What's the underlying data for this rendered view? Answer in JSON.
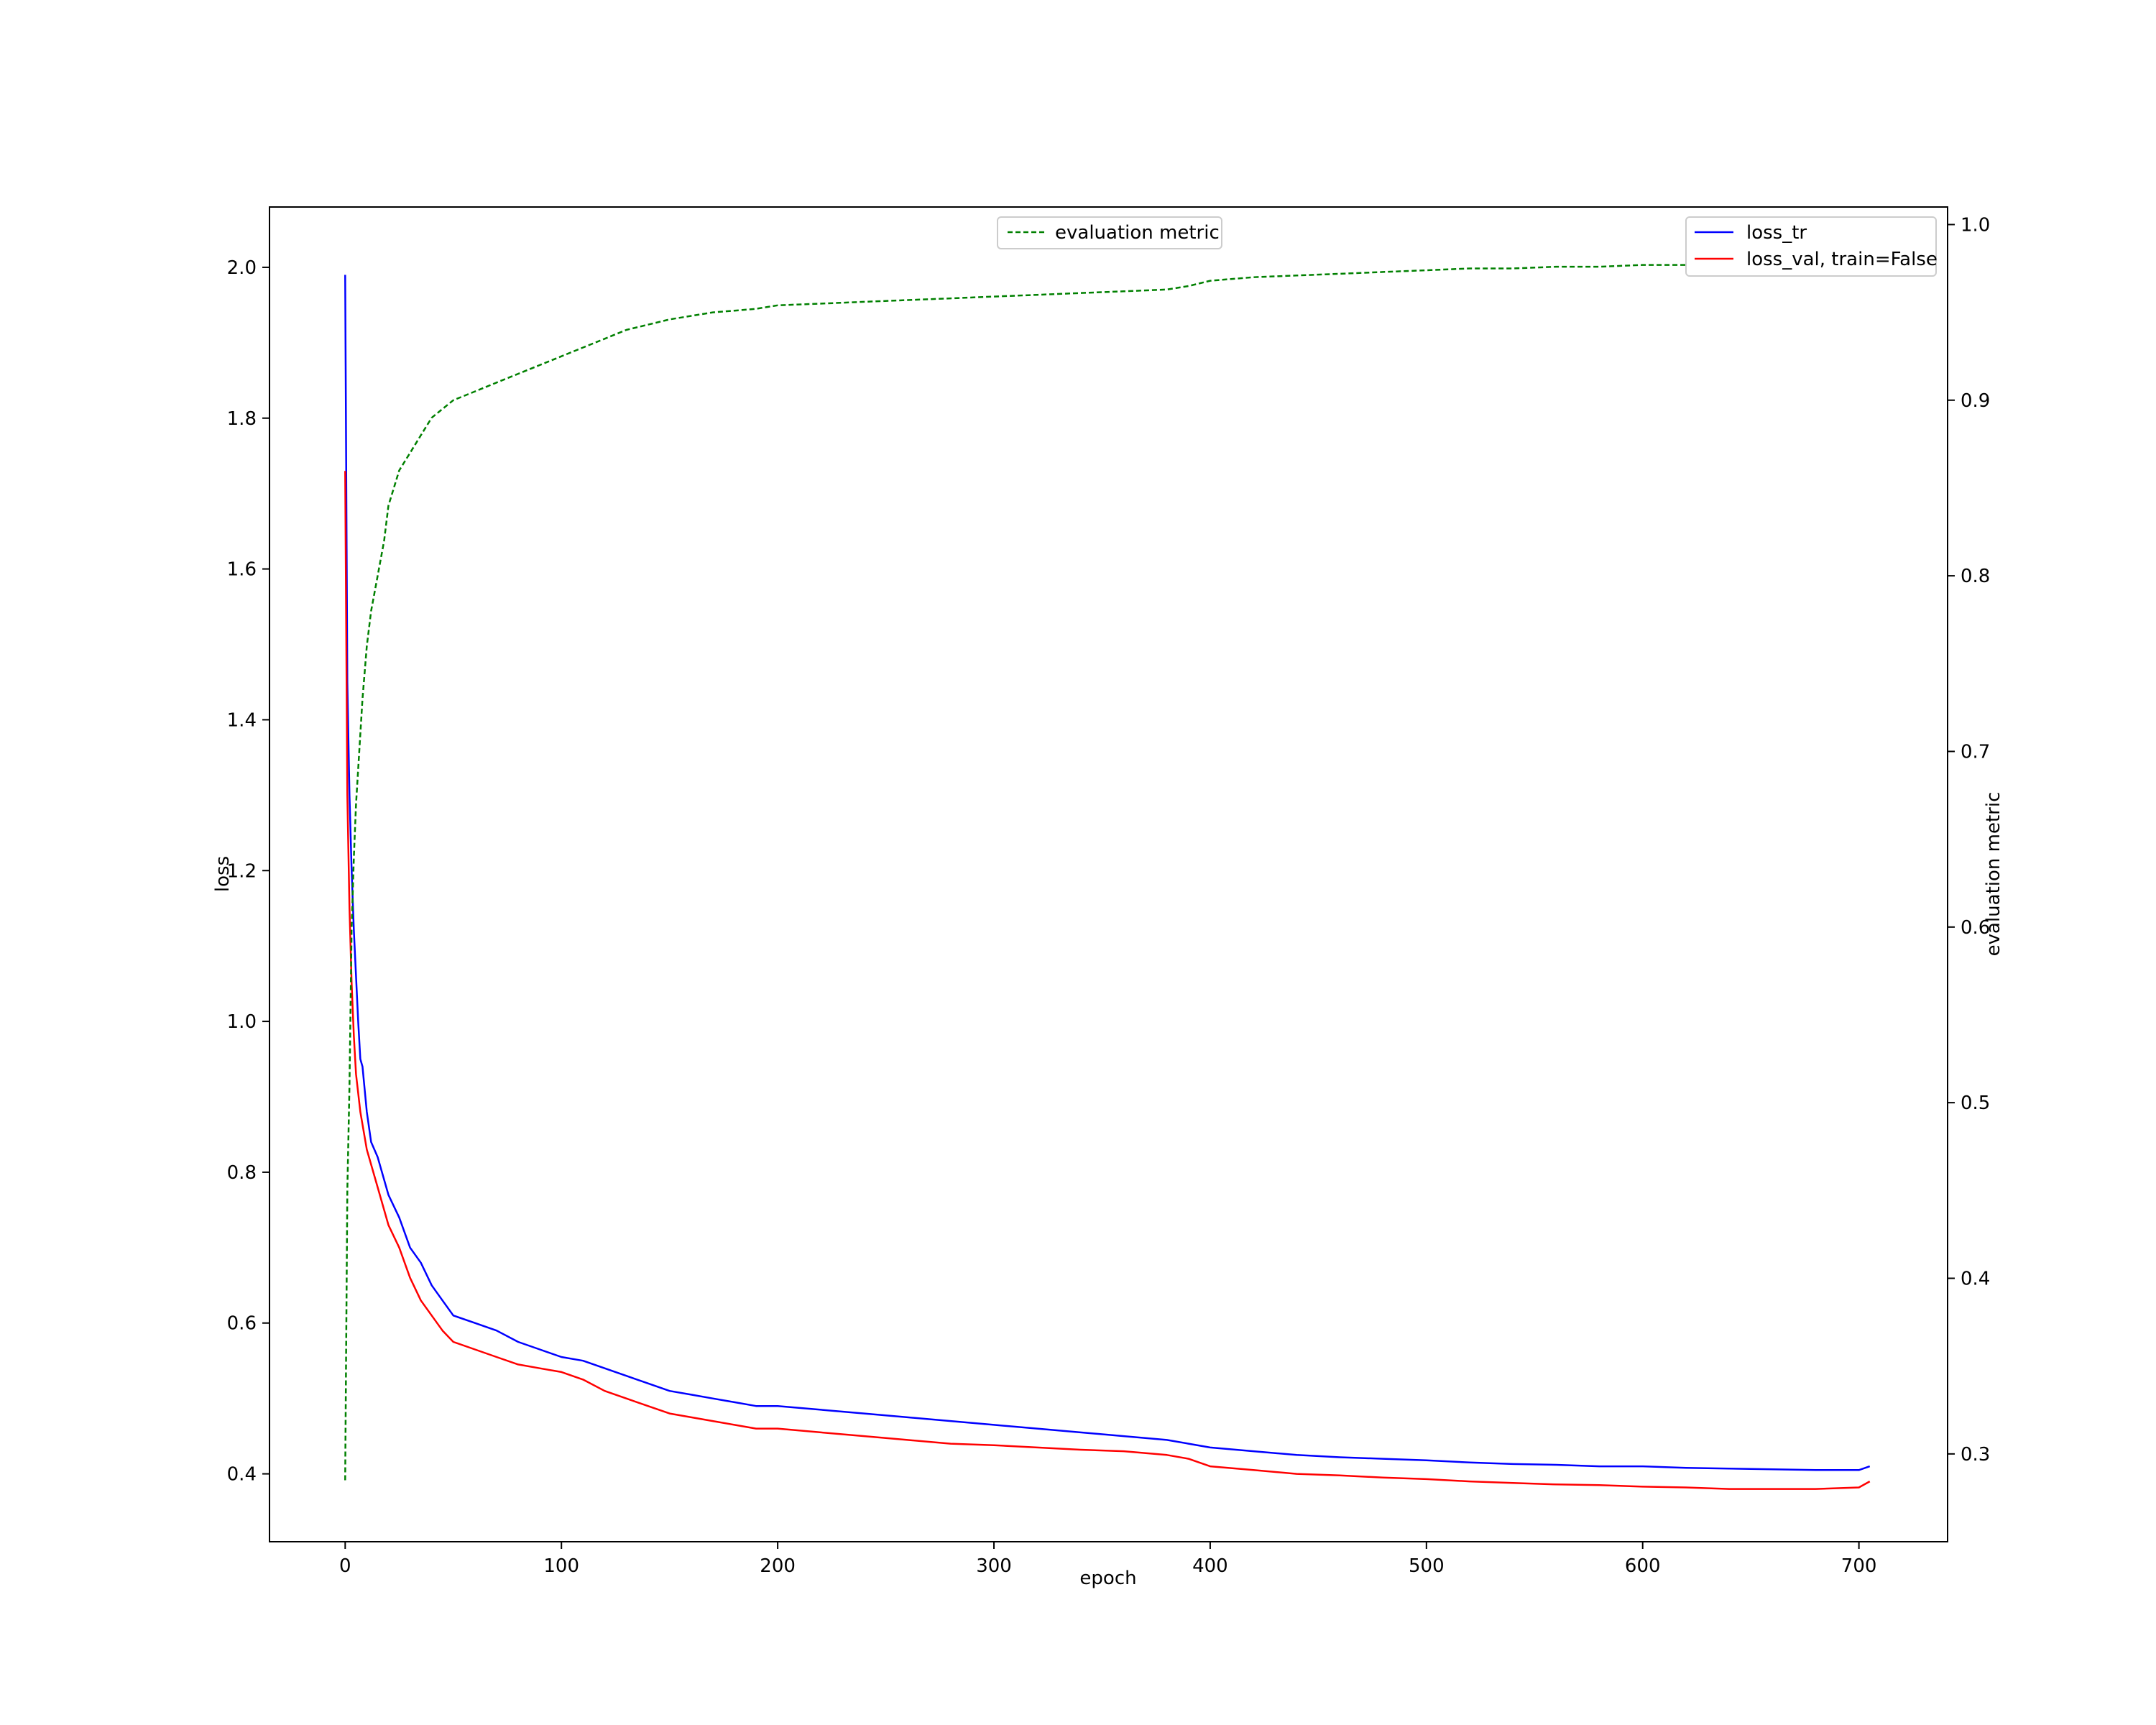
{
  "chart_data": {
    "type": "line",
    "xlabel": "epoch",
    "ylabel_left": "loss",
    "ylabel_right": "evaluation metric",
    "xlim": [
      -35,
      741
    ],
    "ylim_left": [
      0.31,
      2.08
    ],
    "ylim_right": [
      0.25,
      1.01
    ],
    "xticks": [
      "0",
      "100",
      "200",
      "300",
      "400",
      "500",
      "600",
      "700"
    ],
    "yticks_left": [
      "0.4",
      "0.6",
      "0.8",
      "1.0",
      "1.2",
      "1.4",
      "1.6",
      "1.8",
      "2.0"
    ],
    "yticks_right": [
      "0.3",
      "0.4",
      "0.5",
      "0.6",
      "0.7",
      "0.8",
      "0.9",
      "1.0"
    ],
    "grid": false,
    "legend_right": {
      "placement": "top-right",
      "entries": [
        "loss_tr",
        "loss_val, train=False"
      ]
    },
    "legend_left": {
      "placement": "top-center",
      "entries": [
        "evaluation metric"
      ]
    },
    "series": [
      {
        "name": "loss_tr",
        "axis": "left",
        "color": "#0000ff",
        "style": "solid",
        "points": [
          [
            0,
            1.99
          ],
          [
            1,
            1.45
          ],
          [
            2,
            1.3
          ],
          [
            3,
            1.2
          ],
          [
            4,
            1.12
          ],
          [
            5,
            1.06
          ],
          [
            6,
            1.0
          ],
          [
            7,
            0.95
          ],
          [
            8,
            0.94
          ],
          [
            10,
            0.88
          ],
          [
            12,
            0.84
          ],
          [
            15,
            0.82
          ],
          [
            20,
            0.77
          ],
          [
            25,
            0.74
          ],
          [
            30,
            0.7
          ],
          [
            35,
            0.68
          ],
          [
            40,
            0.65
          ],
          [
            45,
            0.63
          ],
          [
            50,
            0.61
          ],
          [
            60,
            0.6
          ],
          [
            70,
            0.59
          ],
          [
            80,
            0.575
          ],
          [
            90,
            0.565
          ],
          [
            100,
            0.555
          ],
          [
            110,
            0.55
          ],
          [
            120,
            0.54
          ],
          [
            130,
            0.53
          ],
          [
            140,
            0.52
          ],
          [
            150,
            0.51
          ],
          [
            160,
            0.505
          ],
          [
            170,
            0.5
          ],
          [
            180,
            0.495
          ],
          [
            190,
            0.49
          ],
          [
            200,
            0.49
          ],
          [
            220,
            0.485
          ],
          [
            240,
            0.48
          ],
          [
            260,
            0.475
          ],
          [
            280,
            0.47
          ],
          [
            300,
            0.465
          ],
          [
            320,
            0.46
          ],
          [
            340,
            0.455
          ],
          [
            360,
            0.45
          ],
          [
            380,
            0.445
          ],
          [
            390,
            0.44
          ],
          [
            400,
            0.435
          ],
          [
            420,
            0.43
          ],
          [
            440,
            0.425
          ],
          [
            460,
            0.422
          ],
          [
            480,
            0.42
          ],
          [
            500,
            0.418
          ],
          [
            520,
            0.415
          ],
          [
            540,
            0.413
          ],
          [
            560,
            0.412
          ],
          [
            580,
            0.41
          ],
          [
            600,
            0.41
          ],
          [
            620,
            0.408
          ],
          [
            640,
            0.407
          ],
          [
            660,
            0.406
          ],
          [
            680,
            0.405
          ],
          [
            700,
            0.405
          ],
          [
            705,
            0.41
          ]
        ]
      },
      {
        "name": "loss_val, train=False",
        "axis": "left",
        "color": "#ff0000",
        "style": "solid",
        "points": [
          [
            0,
            1.73
          ],
          [
            1,
            1.3
          ],
          [
            2,
            1.15
          ],
          [
            3,
            1.05
          ],
          [
            4,
            0.98
          ],
          [
            5,
            0.93
          ],
          [
            7,
            0.88
          ],
          [
            10,
            0.83
          ],
          [
            15,
            0.78
          ],
          [
            20,
            0.73
          ],
          [
            25,
            0.7
          ],
          [
            30,
            0.66
          ],
          [
            35,
            0.63
          ],
          [
            40,
            0.61
          ],
          [
            45,
            0.59
          ],
          [
            50,
            0.575
          ],
          [
            60,
            0.565
          ],
          [
            70,
            0.555
          ],
          [
            80,
            0.545
          ],
          [
            90,
            0.54
          ],
          [
            100,
            0.535
          ],
          [
            110,
            0.525
          ],
          [
            120,
            0.51
          ],
          [
            130,
            0.5
          ],
          [
            140,
            0.49
          ],
          [
            150,
            0.48
          ],
          [
            160,
            0.475
          ],
          [
            170,
            0.47
          ],
          [
            180,
            0.465
          ],
          [
            190,
            0.46
          ],
          [
            200,
            0.46
          ],
          [
            220,
            0.455
          ],
          [
            240,
            0.45
          ],
          [
            260,
            0.445
          ],
          [
            280,
            0.44
          ],
          [
            300,
            0.438
          ],
          [
            320,
            0.435
          ],
          [
            340,
            0.432
          ],
          [
            360,
            0.43
          ],
          [
            380,
            0.425
          ],
          [
            390,
            0.42
          ],
          [
            400,
            0.41
          ],
          [
            420,
            0.405
          ],
          [
            440,
            0.4
          ],
          [
            460,
            0.398
          ],
          [
            480,
            0.395
          ],
          [
            500,
            0.393
          ],
          [
            520,
            0.39
          ],
          [
            540,
            0.388
          ],
          [
            560,
            0.386
          ],
          [
            580,
            0.385
          ],
          [
            600,
            0.383
          ],
          [
            620,
            0.382
          ],
          [
            640,
            0.38
          ],
          [
            660,
            0.38
          ],
          [
            680,
            0.38
          ],
          [
            700,
            0.382
          ],
          [
            705,
            0.39
          ]
        ]
      },
      {
        "name": "evaluation metric",
        "axis": "right",
        "color": "#008000",
        "style": "dashed",
        "points": [
          [
            0,
            0.285
          ],
          [
            1,
            0.45
          ],
          [
            2,
            0.51
          ],
          [
            3,
            0.6
          ],
          [
            4,
            0.64
          ],
          [
            5,
            0.67
          ],
          [
            6,
            0.69
          ],
          [
            7,
            0.71
          ],
          [
            8,
            0.73
          ],
          [
            10,
            0.76
          ],
          [
            12,
            0.78
          ],
          [
            15,
            0.8
          ],
          [
            18,
            0.82
          ],
          [
            20,
            0.84
          ],
          [
            25,
            0.86
          ],
          [
            30,
            0.87
          ],
          [
            35,
            0.88
          ],
          [
            40,
            0.89
          ],
          [
            45,
            0.895
          ],
          [
            50,
            0.9
          ],
          [
            60,
            0.905
          ],
          [
            70,
            0.91
          ],
          [
            80,
            0.915
          ],
          [
            90,
            0.92
          ],
          [
            100,
            0.925
          ],
          [
            110,
            0.93
          ],
          [
            120,
            0.935
          ],
          [
            130,
            0.94
          ],
          [
            140,
            0.943
          ],
          [
            150,
            0.946
          ],
          [
            160,
            0.948
          ],
          [
            170,
            0.95
          ],
          [
            180,
            0.951
          ],
          [
            190,
            0.952
          ],
          [
            200,
            0.954
          ],
          [
            220,
            0.955
          ],
          [
            240,
            0.956
          ],
          [
            260,
            0.957
          ],
          [
            280,
            0.958
          ],
          [
            300,
            0.959
          ],
          [
            320,
            0.96
          ],
          [
            340,
            0.961
          ],
          [
            360,
            0.962
          ],
          [
            380,
            0.963
          ],
          [
            390,
            0.965
          ],
          [
            400,
            0.968
          ],
          [
            420,
            0.97
          ],
          [
            440,
            0.971
          ],
          [
            460,
            0.972
          ],
          [
            480,
            0.973
          ],
          [
            500,
            0.974
          ],
          [
            520,
            0.975
          ],
          [
            540,
            0.975
          ],
          [
            560,
            0.976
          ],
          [
            580,
            0.976
          ],
          [
            600,
            0.977
          ],
          [
            620,
            0.977
          ],
          [
            640,
            0.977
          ],
          [
            660,
            0.978
          ],
          [
            680,
            0.978
          ],
          [
            700,
            0.978
          ],
          [
            705,
            0.978
          ]
        ]
      }
    ]
  }
}
